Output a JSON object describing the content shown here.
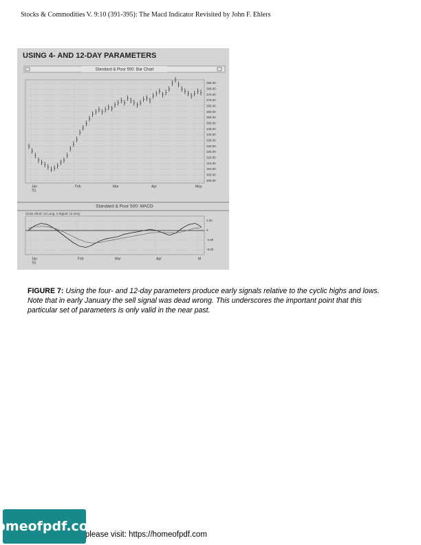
{
  "header": "Stocks & Commodities V. 9:10 (391-395): The Macd Indicator Revisited by John F. Ehlers",
  "figure": {
    "title": "USING 4- AND 12-DAY PARAMETERS",
    "price_chart": {
      "window_title": "Standard & Poor 500: Bar Chart",
      "months": [
        "Jan",
        "Feb",
        "Mar",
        "Apr",
        "May"
      ],
      "year_label": "'91",
      "ylim": [
        298,
        388
      ],
      "yticks": [
        {
          "value": 300,
          "label": "300.00"
        },
        {
          "value": 305,
          "label": "305.00"
        },
        {
          "value": 310,
          "label": "310.00"
        },
        {
          "value": 315,
          "label": "315.00"
        },
        {
          "value": 320,
          "label": "320.00"
        },
        {
          "value": 325,
          "label": "325.00"
        },
        {
          "value": 330,
          "label": "330.00"
        },
        {
          "value": 335,
          "label": "335.00"
        },
        {
          "value": 340,
          "label": "340.00"
        },
        {
          "value": 345,
          "label": "345.00"
        },
        {
          "value": 350,
          "label": "350.00"
        },
        {
          "value": 355,
          "label": "355.00"
        },
        {
          "value": 360,
          "label": "360.00"
        },
        {
          "value": 365,
          "label": "365.00"
        },
        {
          "value": 370,
          "label": "370.00"
        },
        {
          "value": 375,
          "label": "375.00"
        },
        {
          "value": 380,
          "label": "380.00"
        },
        {
          "value": 385,
          "label": "385.00"
        }
      ],
      "values": [
        330,
        326,
        322,
        318,
        316,
        314,
        312,
        310,
        311,
        313,
        316,
        318,
        322,
        328,
        332,
        336,
        342,
        346,
        350,
        354,
        358,
        360,
        362,
        360,
        362,
        364,
        363,
        366,
        368,
        370,
        368,
        372,
        370,
        368,
        366,
        368,
        371,
        372,
        370,
        374,
        376,
        378,
        375,
        377,
        380,
        385,
        388,
        384,
        380,
        378,
        376,
        374,
        376,
        378,
        377
      ]
    },
    "macd_chart": {
      "window_title": "Standard & Poor 500: MACD",
      "legend": "Close Short: 12 Long: 4 Signal: 12 Grey",
      "months": [
        "Jan",
        "Feb",
        "Mar",
        "Apr",
        "M"
      ],
      "year_label": "'91",
      "ylim": [
        -10,
        6
      ],
      "yticks": [
        {
          "value": 4,
          "label": "4.00"
        },
        0,
        {
          "value": -4,
          "label": "-4.00"
        },
        {
          "value": -8,
          "label": "-8.00"
        }
      ],
      "macd": [
        0,
        2,
        3,
        2.5,
        1,
        -1,
        -3,
        -5,
        -6.5,
        -7,
        -6,
        -4.5,
        -3.5,
        -3,
        -2.5,
        -1.5,
        -1,
        -0.5,
        0,
        0.5,
        0,
        -1,
        -2,
        -1,
        1,
        2.5,
        3,
        1.5
      ],
      "signal": [
        1,
        1.5,
        1.8,
        1.6,
        1,
        0,
        -1.2,
        -2.5,
        -3.8,
        -4.8,
        -5.2,
        -5,
        -4.5,
        -4,
        -3.5,
        -3,
        -2.5,
        -2,
        -1.5,
        -1,
        -0.8,
        -0.8,
        -1,
        -1,
        -0.5,
        0.2,
        1,
        1.2
      ]
    },
    "caption": {
      "label": "FIGURE 7:",
      "text": "Using the four- and 12-day parameters produce early signals relative to the cyclic highs and lows. Note that in early January the sell signal was dead wrong. This underscores the important point that this particular set of parameters is only valid in the near past."
    }
  },
  "footer": {
    "logo": "homeofpdf.com",
    "text": "For more please visit: https://homeofpdf.com"
  }
}
